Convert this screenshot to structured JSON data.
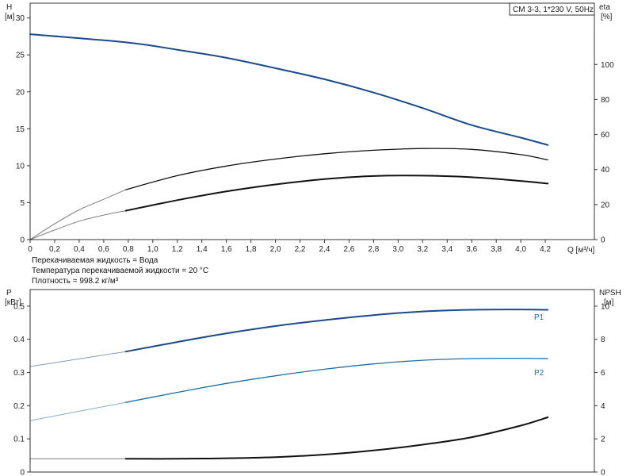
{
  "chart_data": [
    {
      "type": "line",
      "title": "CM 3-3, 1*230 V, 50Hz",
      "xlabel": "Q [м³/ч]",
      "xlim": [
        0,
        4.6
      ],
      "xticks": [
        "0",
        "0,2",
        "0,4",
        "0,6",
        "0,8",
        "1,0",
        "1,2",
        "1,4",
        "1,6",
        "1,8",
        "2,0",
        "2,2",
        "2,4",
        "2,6",
        "2,8",
        "3,0",
        "3,2",
        "3,4",
        "3,6",
        "3,8",
        "4,0",
        "4,2"
      ],
      "y_left": {
        "label_top": "H",
        "label_unit": "[м]",
        "lim": [
          0,
          32
        ],
        "ticks": [
          "0",
          "5",
          "10",
          "15",
          "20",
          "25",
          "30"
        ]
      },
      "y_right": {
        "label_top": "eta",
        "label_unit": "[%]",
        "lim": [
          0,
          135
        ],
        "ticks": [
          "0",
          "20",
          "40",
          "60",
          "80",
          "100"
        ]
      },
      "series": [
        {
          "key": "H",
          "axis": "left",
          "color": "#1a4a8a",
          "width": 2,
          "x": [
            0,
            0.78,
            1.2,
            1.6,
            2.0,
            2.4,
            2.8,
            3.2,
            3.6,
            4.0,
            4.22
          ],
          "values": [
            27.8,
            26.7,
            25.7,
            24.6,
            23.2,
            21.7,
            19.9,
            17.8,
            15.5,
            13.8,
            12.8
          ],
          "dashed_until": 0
        },
        {
          "axis": "right",
          "color": "#111111",
          "width": 1.3,
          "x": [
            0,
            0.2,
            0.4,
            0.6,
            0.78,
            1.2,
            1.6,
            2.0,
            2.4,
            2.8,
            3.2,
            3.6,
            4.0,
            4.22
          ],
          "values": [
            0,
            9,
            17,
            23,
            28.5,
            36.5,
            42,
            46,
            49,
            51,
            52,
            51.5,
            48.5,
            45.5
          ],
          "dashed_until": 0.78
        },
        {
          "axis": "right",
          "color": "#111111",
          "width": 2,
          "x": [
            0,
            0.2,
            0.4,
            0.6,
            0.78,
            1.2,
            1.6,
            2.0,
            2.4,
            2.8,
            3.2,
            3.6,
            4.0,
            4.22
          ],
          "values": [
            0,
            5.5,
            10.5,
            14,
            16.5,
            22.5,
            27.5,
            31.5,
            34.5,
            36.3,
            36.5,
            35.6,
            33.5,
            32
          ],
          "dashed_until": 0.78
        }
      ],
      "info_lines": [
        "Перекачиваемая жидкость = Вода",
        "Температура перекачиваемой жидкости = 20 °C",
        "Плотность = 998.2 кг/м³"
      ]
    },
    {
      "type": "line",
      "xlim": [
        0,
        4.6
      ],
      "y_left": {
        "label_top": "P",
        "label_unit": "[кВт]",
        "lim": [
          0,
          0.55
        ],
        "ticks": [
          "0",
          "0.1",
          "0.2",
          "0.3",
          "0.4",
          "0.5"
        ]
      },
      "y_right": {
        "label_top": "NPSH",
        "label_unit": "[м]",
        "lim": [
          0,
          11
        ],
        "ticks": [
          "0",
          "2",
          "4",
          "6",
          "8",
          "10"
        ]
      },
      "series": [
        {
          "name": "P1",
          "axis": "left",
          "color": "#1a4a8a",
          "width": 2,
          "x": [
            0,
            0.78,
            1.2,
            1.6,
            2.0,
            2.4,
            2.8,
            3.2,
            3.6,
            4.0,
            4.22
          ],
          "values": [
            0.318,
            0.363,
            0.392,
            0.418,
            0.44,
            0.458,
            0.473,
            0.484,
            0.489,
            0.49,
            0.489
          ],
          "dashed_until": 0.78
        },
        {
          "name": "P2",
          "axis": "left",
          "color": "#1f6fa5",
          "width": 1.3,
          "x": [
            0,
            0.78,
            1.2,
            1.6,
            2.0,
            2.4,
            2.8,
            3.2,
            3.6,
            4.0,
            4.22
          ],
          "values": [
            0.155,
            0.21,
            0.24,
            0.267,
            0.29,
            0.31,
            0.326,
            0.337,
            0.342,
            0.343,
            0.342
          ],
          "dashed_until": 0.78
        },
        {
          "key": "NPSH",
          "axis": "right",
          "color": "#111111",
          "width": 2,
          "x": [
            0,
            0.78,
            1.2,
            1.6,
            2.0,
            2.4,
            2.8,
            3.2,
            3.6,
            4.0,
            4.22
          ],
          "values": [
            0.8,
            0.8,
            0.8,
            0.83,
            0.9,
            1.05,
            1.3,
            1.65,
            2.1,
            2.8,
            3.3
          ],
          "dashed_until": 0.78
        }
      ]
    }
  ]
}
